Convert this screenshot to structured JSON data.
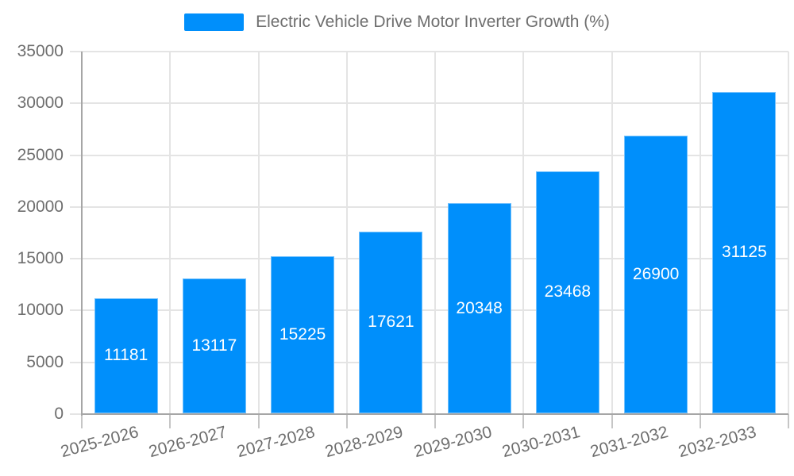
{
  "legend": {
    "label": "Electric Vehicle Drive Motor Inverter Growth (%)",
    "swatch_color": "#008FFB",
    "position": "top"
  },
  "chart_data": {
    "type": "bar",
    "title": "Electric Vehicle Drive Motor Inverter Growth (%)",
    "series_name": "Electric Vehicle Drive Motor Inverter Growth (%)",
    "categories": [
      "2025-2026",
      "2026-2027",
      "2027-2028",
      "2028-2029",
      "2029-2030",
      "2030-2031",
      "2031-2032",
      "2032-2033"
    ],
    "values": [
      11181,
      13117,
      15225,
      17621,
      20348,
      23468,
      26900,
      31125
    ],
    "xlabel": "",
    "ylabel": "",
    "ylim": [
      0,
      35000
    ],
    "yticks": [
      0,
      5000,
      10000,
      15000,
      20000,
      25000,
      30000,
      35000
    ],
    "grid": true,
    "legend_position": "top",
    "bar_color": "#008FFB",
    "value_label_color": "#ffffff",
    "axis_label_color": "#6e6e6e",
    "grid_color": "#e4e4e4",
    "axis_line_color": "#a6a6a6"
  }
}
